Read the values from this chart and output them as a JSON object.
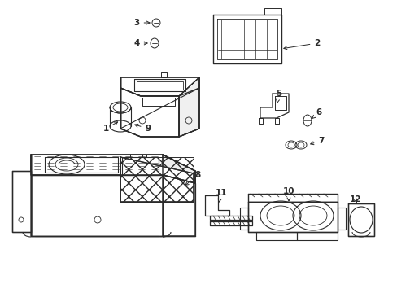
{
  "bg_color": "#ffffff",
  "line_color": "#2a2a2a",
  "figsize": [
    4.89,
    3.6
  ],
  "dpi": 100,
  "label_fontsize": 7.5
}
